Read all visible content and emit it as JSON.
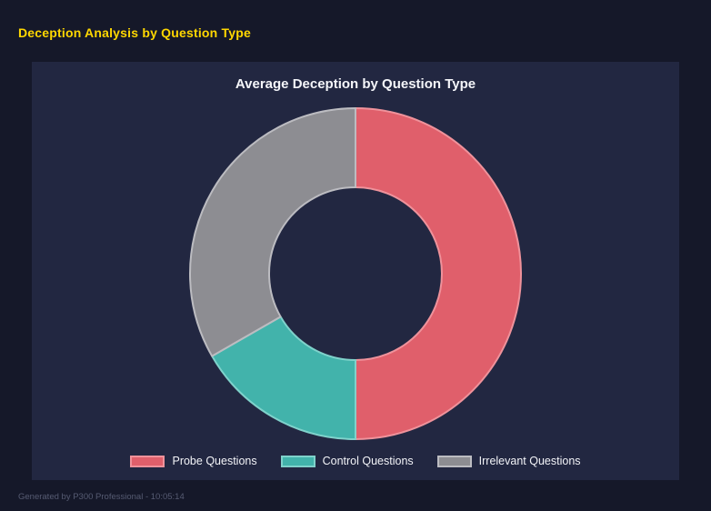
{
  "page": {
    "title": "Deception Analysis by Question Type",
    "footer": "Generated by P300 Professional - 10:05:14"
  },
  "chart_data": {
    "type": "pie",
    "subtype": "doughnut",
    "title": "Average Deception by Question Type",
    "labels": [
      "Probe Questions",
      "Control Questions",
      "Irrelevant Questions"
    ],
    "values": [
      50.0,
      16.7,
      33.3
    ],
    "unit": "percent-of-total",
    "colors": [
      "#e05f6b",
      "#42b3ab",
      "#8d8d92"
    ],
    "border_colors": [
      "#ef929b",
      "#7fd2cb",
      "#bcbcc1"
    ],
    "start_angle_deg": 0,
    "direction": "clockwise",
    "inner_radius_ratio": 0.52,
    "legend_position": "bottom",
    "background": "#222741",
    "page_background": "#151829",
    "title_color": "#ffd700"
  }
}
